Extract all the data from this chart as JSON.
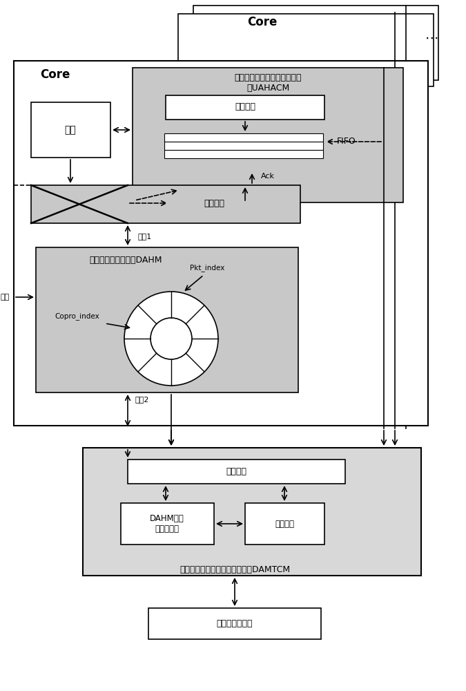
{
  "bg_color": "#ffffff",
  "gray_fill": "#c8c8c8",
  "light_gray": "#d8d8d8",
  "white_fill": "#ffffff",
  "border_color": "#000000",
  "title_core_top": "Core",
  "title_core_main": "Core",
  "label_uahacm": "上游自适应硬件加速协处理模\n块UAHACM",
  "label_jiasu": "加速处理",
  "label_fifo": "FIFO",
  "label_neihe": "内核",
  "label_chazong": "插空传输",
  "label_ack": "Ack",
  "label_duankou1": "端口1",
  "label_dahm": "直接访问高速存储体DAHM",
  "label_pkt_index": "Pkt_index",
  "label_copro_index": "Copro_index",
  "label_duankou2": "端口2",
  "label_rw": "读写仲辁",
  "label_damtcm": "下游自适应报文传输协处理模块DAMTCM",
  "label_dahm_addr": "DAHM地址\n分配与回收",
  "label_output_sched": "输出调度",
  "label_network": "网络接口控制器",
  "label_kongzhi": "控制",
  "dots": "⋯"
}
